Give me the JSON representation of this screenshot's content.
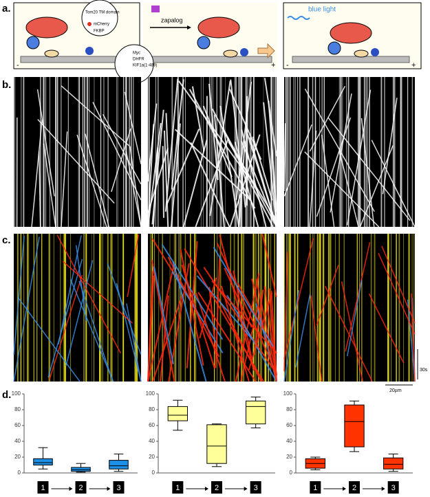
{
  "panel_labels": [
    "a.",
    "b.",
    "c.",
    "d."
  ],
  "diagram": {
    "tom20": "Tom20 TM domain",
    "mcherry": "mCherry",
    "fkbp": "FKBP",
    "myc": "Myc",
    "dhfr": "DHFR",
    "kif": "KIF1a(1-489)",
    "drug": "zapalog",
    "light": "blue light",
    "minus": "-",
    "plus": "+"
  },
  "scale_bars": {
    "time": "30s",
    "length": "20µm"
  },
  "chart_data": [
    {
      "type": "box",
      "color": "#1e8fe6",
      "categories": [
        "1",
        "2",
        "3"
      ],
      "ylim": [
        0,
        100
      ],
      "yticks": [
        0,
        20,
        40,
        60,
        80,
        100
      ],
      "boxes": [
        {
          "min": 5,
          "q1": 10,
          "median": 13,
          "q3": 18,
          "max": 32
        },
        {
          "min": 1,
          "q1": 2,
          "median": 4,
          "q3": 7,
          "max": 12
        },
        {
          "min": 2,
          "q1": 5,
          "median": 9,
          "q3": 16,
          "max": 24
        }
      ]
    },
    {
      "type": "box",
      "color": "#ffff99",
      "categories": [
        "1",
        "2",
        "3"
      ],
      "ylim": [
        0,
        100
      ],
      "yticks": [
        0,
        20,
        40,
        60,
        80,
        100
      ],
      "boxes": [
        {
          "min": 54,
          "q1": 66,
          "median": 73,
          "q3": 84,
          "max": 92
        },
        {
          "min": 8,
          "q1": 12,
          "median": 34,
          "q3": 61,
          "max": 62
        },
        {
          "min": 57,
          "q1": 62,
          "median": 84,
          "q3": 91,
          "max": 96
        }
      ]
    },
    {
      "type": "box",
      "color": "#ff3300",
      "categories": [
        "1",
        "2",
        "3"
      ],
      "ylim": [
        0,
        100
      ],
      "yticks": [
        0,
        20,
        40,
        60,
        80,
        100
      ],
      "boxes": [
        {
          "min": 4,
          "q1": 6,
          "median": 12,
          "q3": 18,
          "max": 20
        },
        {
          "min": 27,
          "q1": 33,
          "median": 65,
          "q3": 86,
          "max": 91
        },
        {
          "min": 2,
          "q1": 5,
          "median": 11,
          "q3": 19,
          "max": 24
        }
      ]
    }
  ]
}
